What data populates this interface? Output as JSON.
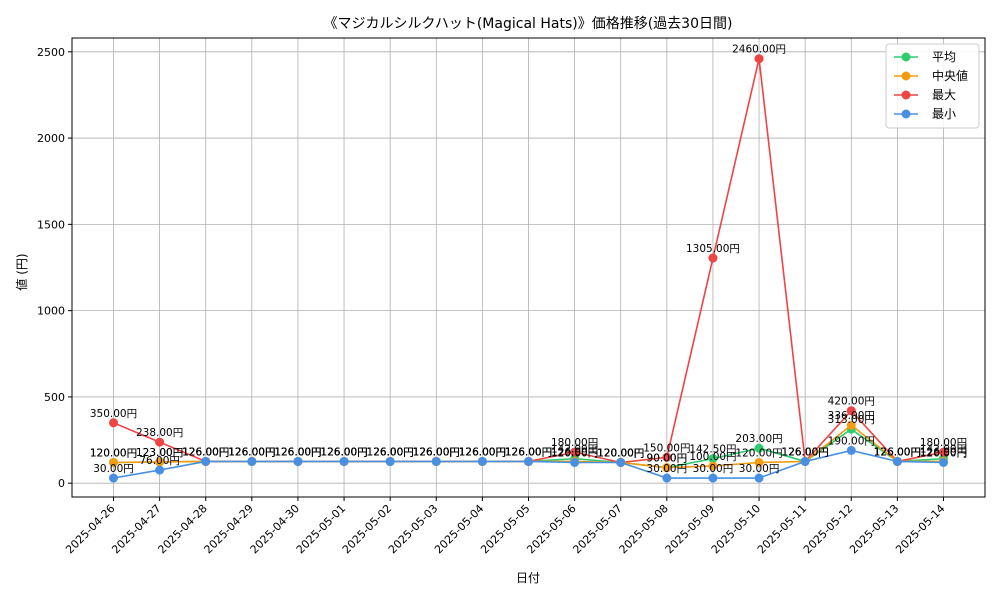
{
  "chart_data": {
    "type": "line",
    "title": "《マジカルシルクハット(Magical Hats)》価格推移(過去30日間)",
    "xlabel": "日付",
    "ylabel": "値 (円)",
    "ylim": [
      -80,
      2580
    ],
    "yticks": [
      0,
      500,
      1000,
      1500,
      2000,
      2500
    ],
    "grid": true,
    "legend_position": "top-right",
    "categories": [
      "2025-04-26",
      "2025-04-27",
      "2025-04-28",
      "2025-04-29",
      "2025-04-30",
      "2025-05-01",
      "2025-05-02",
      "2025-05-03",
      "2025-05-04",
      "2025-05-05",
      "2025-05-06",
      "2025-05-07",
      "2025-05-08",
      "2025-05-09",
      "2025-05-10",
      "2025-05-11",
      "2025-05-12",
      "2025-05-13",
      "2025-05-14"
    ],
    "label_suffix": "円",
    "series": [
      {
        "name": "平均",
        "color": "#2ecc71",
        "values": [
          120,
          123,
          126,
          126,
          126,
          126,
          126,
          126,
          126,
          126,
          142,
          120,
          90,
          142.5,
          203,
          126,
          313,
          126,
          142
        ]
      },
      {
        "name": "中央値",
        "color": "#f39c12",
        "values": [
          120,
          123,
          126,
          126,
          126,
          126,
          126,
          126,
          126,
          126,
          126,
          120,
          90,
          100,
          120,
          126,
          336,
          126,
          126
        ]
      },
      {
        "name": "最大",
        "color": "#ef4444",
        "values": [
          350,
          238,
          126,
          126,
          126,
          126,
          126,
          126,
          126,
          126,
          180,
          120,
          150,
          1305,
          2460,
          126,
          420,
          126,
          180
        ]
      },
      {
        "name": "最小",
        "color": "#4a90e2",
        "values": [
          30,
          76,
          126,
          126,
          126,
          126,
          126,
          126,
          126,
          126,
          120,
          120,
          30,
          30,
          30,
          126,
          190,
          126,
          120
        ]
      }
    ]
  }
}
